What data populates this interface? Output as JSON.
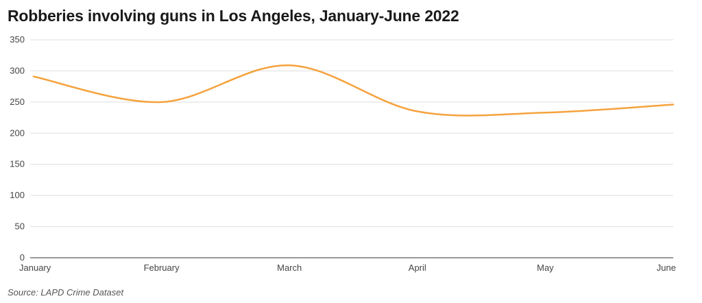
{
  "chart_data": {
    "type": "line",
    "title": "Robberies involving guns in Los Angeles, January-June 2022",
    "source": "Source: LAPD Crime Dataset",
    "xlabel": "",
    "ylabel": "",
    "categories": [
      "January",
      "February",
      "March",
      "April",
      "May",
      "June"
    ],
    "series": [
      {
        "values": [
          291,
          250,
          309,
          235,
          233,
          246
        ]
      }
    ],
    "ylim": [
      0,
      350
    ],
    "yticks": [
      0,
      50,
      100,
      150,
      200,
      250,
      300,
      350
    ],
    "grid": true,
    "legend": "none",
    "colors": {
      "line": "#f5a23c",
      "grid": "#dddddd",
      "axis": "#333333"
    }
  }
}
